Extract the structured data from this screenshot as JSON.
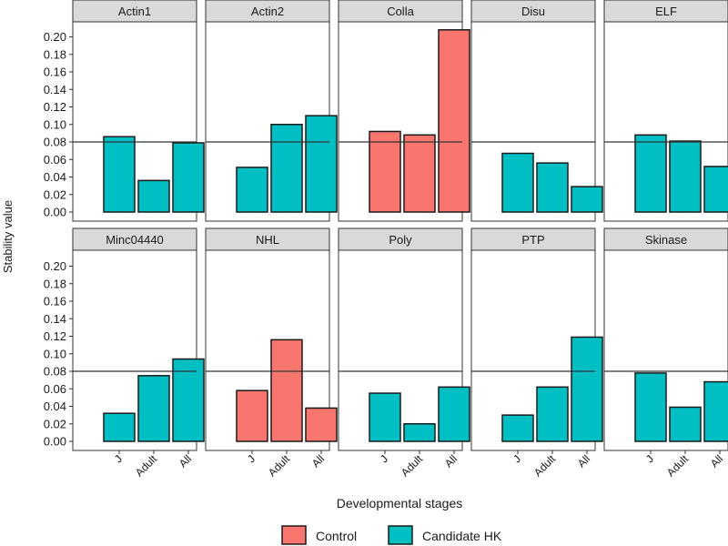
{
  "chart_data": {
    "type": "bar",
    "layout": "faceted 2x5",
    "xlabel": "Developmental stages",
    "ylabel": "Stability value",
    "ylim": [
      0,
      0.21
    ],
    "yticks": [
      "0.00",
      "0.02",
      "0.04",
      "0.06",
      "0.08",
      "0.10",
      "0.12",
      "0.14",
      "0.16",
      "0.18",
      "0.20"
    ],
    "ytick_values": [
      0,
      0.02,
      0.04,
      0.06,
      0.08,
      0.1,
      0.12,
      0.14,
      0.16,
      0.18,
      0.2
    ],
    "reference_line": 0.08,
    "categories": [
      "J",
      "Adult",
      "All"
    ],
    "legend": {
      "position": "bottom",
      "entries": [
        {
          "name": "Control",
          "color": "#F8766D"
        },
        {
          "name": "Candidate HK",
          "color": "#00BFC4"
        }
      ]
    },
    "facets": [
      {
        "name": "Actin1",
        "group": "Candidate HK",
        "values": [
          0.086,
          0.036,
          0.079
        ]
      },
      {
        "name": "Actin2",
        "group": "Candidate HK",
        "values": [
          0.051,
          0.1,
          0.11
        ]
      },
      {
        "name": "Colla",
        "group": "Control",
        "values": [
          0.092,
          0.088,
          0.208
        ]
      },
      {
        "name": "Disu",
        "group": "Candidate HK",
        "values": [
          0.067,
          0.056,
          0.029
        ]
      },
      {
        "name": "ELF",
        "group": "Candidate HK",
        "values": [
          0.088,
          0.081,
          0.052
        ]
      },
      {
        "name": "Minc04440",
        "group": "Candidate HK",
        "values": [
          0.032,
          0.075,
          0.094
        ]
      },
      {
        "name": "NHL",
        "group": "Control",
        "values": [
          0.058,
          0.116,
          0.038
        ]
      },
      {
        "name": "Poly",
        "group": "Candidate HK",
        "values": [
          0.055,
          0.02,
          0.062
        ]
      },
      {
        "name": "PTP",
        "group": "Candidate HK",
        "values": [
          0.03,
          0.062,
          0.119
        ]
      },
      {
        "name": "Skinase",
        "group": "Candidate HK",
        "values": [
          0.078,
          0.039,
          0.068
        ]
      }
    ]
  }
}
